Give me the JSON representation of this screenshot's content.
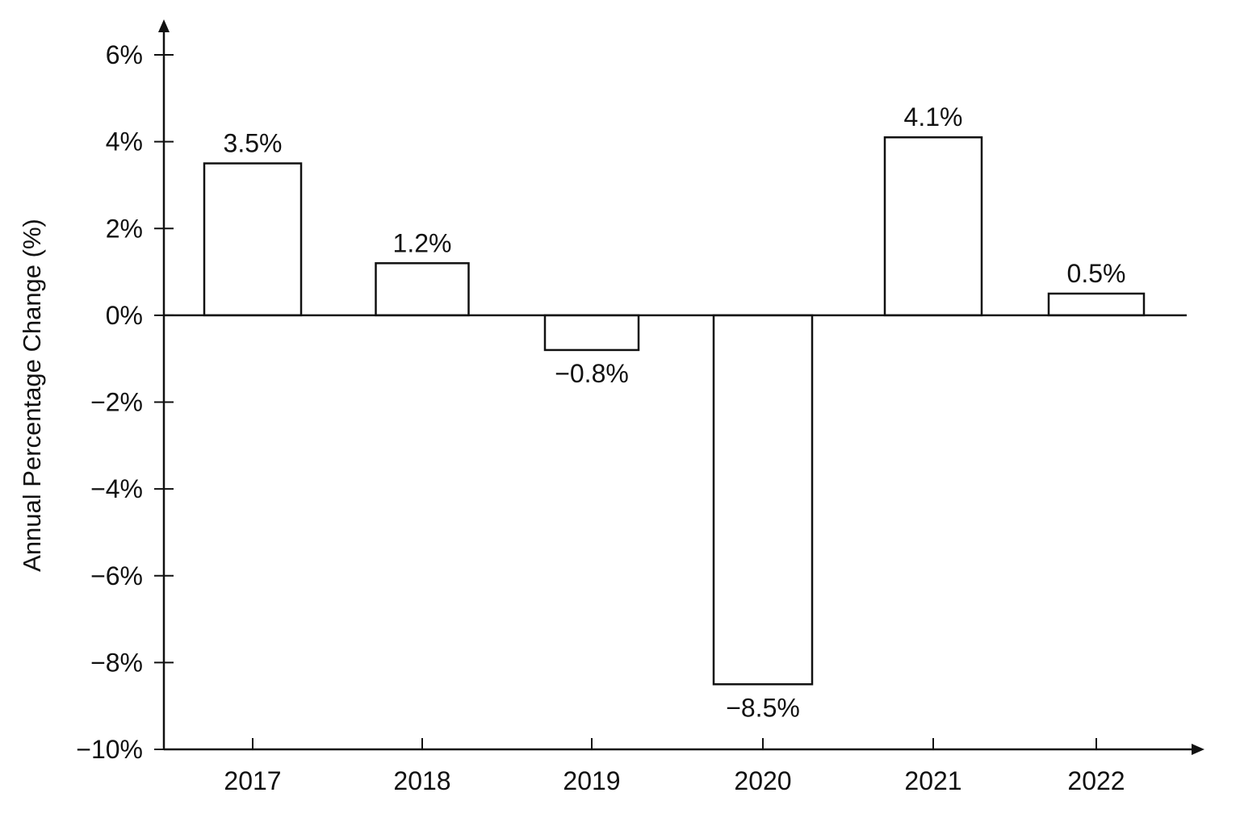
{
  "chart_data": {
    "type": "bar",
    "title": "",
    "xlabel": "",
    "ylabel": "Annual Percentage Change (%)",
    "categories": [
      "2017",
      "2018",
      "2019",
      "2020",
      "2021",
      "2022"
    ],
    "values": [
      3.5,
      1.2,
      -0.8,
      -8.5,
      4.1,
      0.5
    ],
    "data_labels": [
      "3.5%",
      "1.2%",
      "−0.8%",
      "−8.5%",
      "4.1%",
      "0.5%"
    ],
    "ylim": [
      -10,
      6
    ],
    "yticks": [
      6,
      4,
      2,
      0,
      -2,
      -4,
      -6,
      -8,
      -10
    ],
    "ytick_labels": [
      "6%",
      "4%",
      "2%",
      "0%",
      "−2%",
      "−4%",
      "−6%",
      "−8%",
      "−10%"
    ],
    "grid": false,
    "legend": "none",
    "colors": {
      "bar_fill": "#ffffff",
      "bar_stroke": "#111111",
      "axis": "#111111"
    }
  }
}
